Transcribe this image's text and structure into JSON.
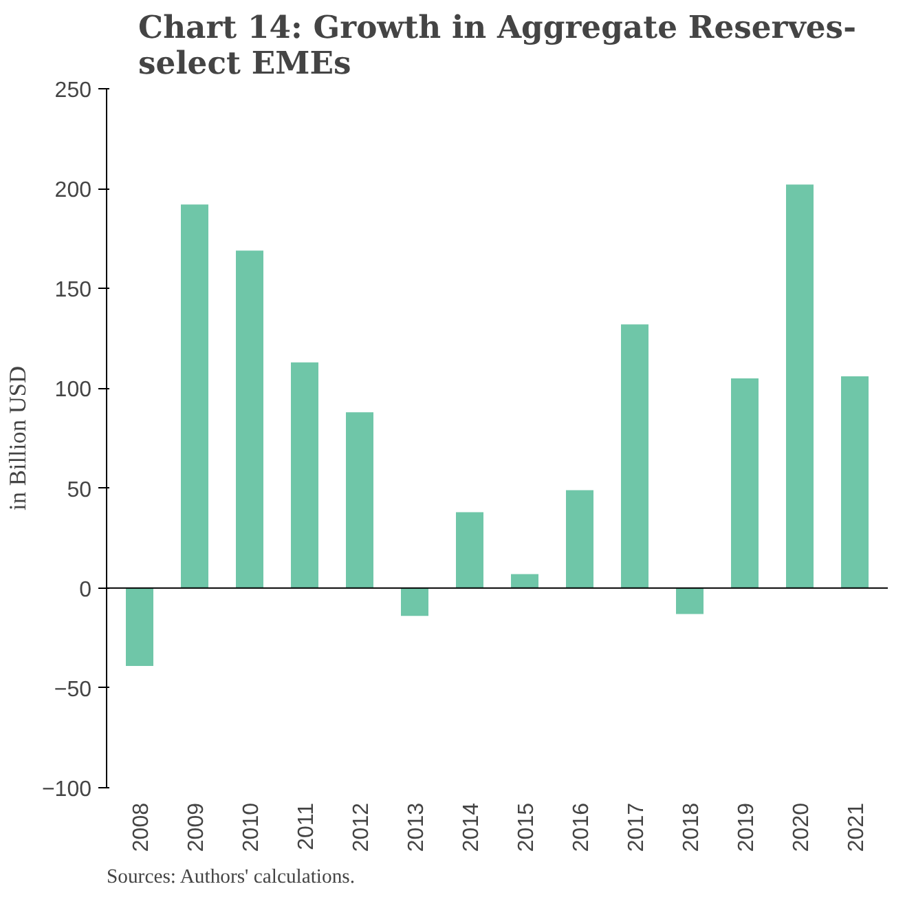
{
  "chart_data": {
    "type": "bar",
    "title": "Chart 14: Growth in Aggregate Reserves-\nselect EMEs",
    "ylabel": "in Billion USD",
    "categories": [
      "2008",
      "2009",
      "2010",
      "2011",
      "2012",
      "2013",
      "2014",
      "2015",
      "2016",
      "2017",
      "2018",
      "2019",
      "2020",
      "2021"
    ],
    "values": [
      -39,
      192,
      169,
      113,
      88,
      -14,
      38,
      7,
      49,
      132,
      -13,
      105,
      202,
      106
    ],
    "color": "#6fc6a8",
    "ylim": [
      -100,
      250
    ],
    "yticks": [
      -100,
      -50,
      0,
      50,
      100,
      150,
      200,
      250
    ],
    "grid": false,
    "ref_lines": [
      {
        "axis": "y",
        "value": 0,
        "color": "#000000",
        "line_style": "solid"
      }
    ],
    "annotations": [
      "Sources: Authors' calculations."
    ]
  }
}
